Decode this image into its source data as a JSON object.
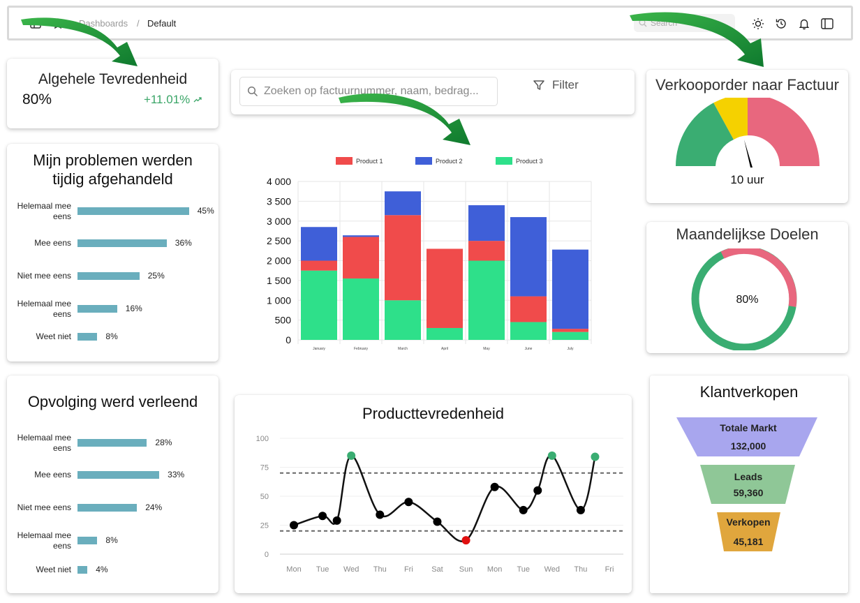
{
  "topbar": {
    "breadcrumb_parent": "Dashboards",
    "breadcrumb_sep": "/",
    "breadcrumb_current": "Default",
    "search_placeholder": "Search"
  },
  "satisfaction": {
    "title": "Algehele Tevredenheid",
    "value": "80%",
    "delta": "+11.01%"
  },
  "problems": {
    "title_line1": "Mijn problemen werden",
    "title_line2": "tijdig afgehandeld",
    "items": [
      {
        "label": "Helemaal mee eens",
        "value": "45%",
        "pct": 45
      },
      {
        "label": "Mee eens",
        "value": "36%",
        "pct": 36
      },
      {
        "label": "Niet mee eens",
        "value": "25%",
        "pct": 25
      },
      {
        "label": "Helemaal mee eens",
        "value": "16%",
        "pct": 16
      },
      {
        "label": "Weet niet",
        "value": "8%",
        "pct": 8
      }
    ]
  },
  "followup": {
    "title": "Opvolging werd verleend",
    "items": [
      {
        "label": "Helemaal mee eens",
        "value": "28%",
        "pct": 28
      },
      {
        "label": "Mee eens",
        "value": "33%",
        "pct": 33
      },
      {
        "label": "Niet mee eens",
        "value": "24%",
        "pct": 24
      },
      {
        "label": "Helemaal mee eens",
        "value": "8%",
        "pct": 8
      },
      {
        "label": "Weet niet",
        "value": "4%",
        "pct": 4
      }
    ]
  },
  "toolbar": {
    "search_placeholder": "Zoeken op factuurnummer, naam, bedrag...",
    "filter_label": "Filter"
  },
  "gauge": {
    "title": "Verkooporder naar Factuur",
    "value_label": "10 uur",
    "colors": {
      "green": "#3aad72",
      "yellow": "#f5d100",
      "red": "#e8677e"
    }
  },
  "goals": {
    "title": "Maandelijkse Doelen",
    "value_label": "80%",
    "colors": {
      "complete": "#3aad72",
      "remaining": "#e8677e"
    }
  },
  "sales": {
    "title": "Klantverkopen",
    "stages": [
      {
        "label": "Totale Markt",
        "value": "132,000",
        "color": "#a8a6ee"
      },
      {
        "label": "Leads",
        "value": "59,360",
        "color": "#8fc797"
      },
      {
        "label": "Verkopen",
        "value": "45,181",
        "color": "#e0a63d"
      }
    ]
  },
  "line_title": "Producttevredenheid",
  "chart_data": [
    {
      "type": "bar",
      "stacked": true,
      "categories": [
        "January",
        "February",
        "March",
        "April",
        "May",
        "June",
        "July"
      ],
      "series": [
        {
          "name": "Product 1",
          "color": "#f04b4b",
          "values": [
            250,
            1050,
            2150,
            2000,
            500,
            650,
            80
          ]
        },
        {
          "name": "Product 2",
          "color": "#3f5fd8",
          "values": [
            850,
            40,
            600,
            0,
            900,
            2000,
            2000
          ]
        },
        {
          "name": "Product 3",
          "color": "#2ee08a",
          "values": [
            1750,
            1550,
            1000,
            300,
            2000,
            450,
            200
          ]
        }
      ],
      "ylim": [
        0,
        4000
      ],
      "yticks": [
        "0",
        "500",
        "1 000",
        "1 500",
        "2 000",
        "2 500",
        "3 000",
        "3 500",
        "4 000"
      ],
      "grid": true,
      "legend_position": "top"
    },
    {
      "type": "line",
      "title": "Producttevredenheid",
      "categories": [
        "Mon",
        "Tue",
        "Wed",
        "Thu",
        "Fri",
        "Sat",
        "Sun",
        "Mon",
        "Tue",
        "Wed",
        "Thu",
        "Fri"
      ],
      "x": [
        0,
        1,
        1.5,
        2,
        3,
        4,
        5,
        6,
        7,
        8,
        8.5,
        9,
        10,
        10.5
      ],
      "y": [
        25,
        33,
        29,
        85,
        34,
        45,
        28,
        12,
        58,
        38,
        55,
        85,
        38,
        84
      ],
      "point_colors": [
        "#000",
        "#000",
        "#000",
        "#3aad72",
        "#000",
        "#000",
        "#000",
        "#e01010",
        "#000",
        "#000",
        "#000",
        "#3aad72",
        "#000",
        "#3aad72"
      ],
      "ylim": [
        0,
        100
      ],
      "yticks": [
        "0",
        "25",
        "50",
        "75",
        "100"
      ],
      "reference_lines": [
        20,
        70
      ]
    }
  ]
}
